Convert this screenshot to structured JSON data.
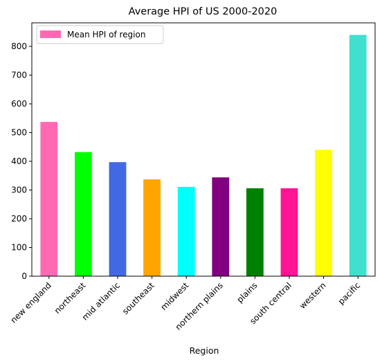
{
  "chart_data": {
    "type": "bar",
    "title": "Average HPI of US 2000-2020",
    "xlabel": "Region",
    "ylabel": "",
    "categories": [
      "new england",
      "northeast",
      "mid atlantic",
      "southeast",
      "midwest",
      "northern plains",
      "plains",
      "south central",
      "western",
      "pacific"
    ],
    "series": [
      {
        "name": "Mean HPI of region",
        "values": [
          537,
          432,
          397,
          337,
          311,
          344,
          306,
          306,
          440,
          840
        ]
      }
    ],
    "colors": [
      "#ff69b4",
      "#00ff00",
      "#4169e1",
      "#ffa500",
      "#00ffff",
      "#800080",
      "#008000",
      "#ff1493",
      "#ffff00",
      "#40e0d0"
    ],
    "legend_color": "#ff69b4",
    "yticks": [
      0,
      100,
      200,
      300,
      400,
      500,
      600,
      700,
      800
    ],
    "ylim": [
      0,
      882
    ],
    "grid": false,
    "legend_position": "top-left"
  }
}
